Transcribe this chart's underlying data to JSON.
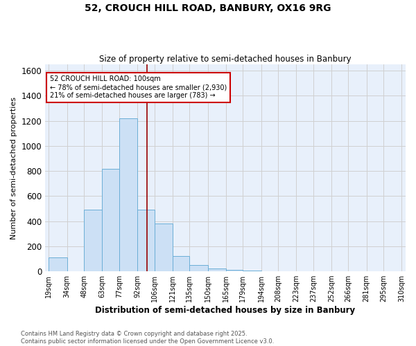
{
  "title_line1": "52, CROUCH HILL ROAD, BANBURY, OX16 9RG",
  "title_line2": "Size of property relative to semi-detached houses in Banbury",
  "xlabel": "Distribution of semi-detached houses by size in Banbury",
  "ylabel": "Number of semi-detached properties",
  "footnote": "Contains HM Land Registry data © Crown copyright and database right 2025.\nContains public sector information licensed under the Open Government Licence v3.0.",
  "bin_labels": [
    "19sqm",
    "34sqm",
    "48sqm",
    "63sqm",
    "77sqm",
    "92sqm",
    "106sqm",
    "121sqm",
    "135sqm",
    "150sqm",
    "165sqm",
    "179sqm",
    "194sqm",
    "208sqm",
    "223sqm",
    "237sqm",
    "252sqm",
    "266sqm",
    "281sqm",
    "295sqm",
    "310sqm"
  ],
  "bar_heights": [
    110,
    0,
    490,
    820,
    1220,
    490,
    380,
    120,
    50,
    20,
    10,
    5,
    0,
    0,
    0,
    0,
    0,
    0,
    0,
    0
  ],
  "bar_color": "#cce0f5",
  "bar_edgecolor": "#6baed6",
  "grid_color": "#d0d0d0",
  "background_color": "#e8f0fb",
  "ylim": [
    0,
    1650
  ],
  "property_label": "52 CROUCH HILL ROAD: 100sqm",
  "annotation_line1": "← 78% of semi-detached houses are smaller (2,930)",
  "annotation_line2": "21% of semi-detached houses are larger (783) →",
  "red_line_x": 100,
  "red_line_color": "#990000",
  "annotation_box_edgecolor": "#cc0000",
  "tick_fontsize": 7,
  "bin_edges": [
    19,
    34,
    48,
    63,
    77,
    92,
    106,
    121,
    135,
    150,
    165,
    179,
    194,
    208,
    223,
    237,
    252,
    266,
    281,
    295,
    310
  ]
}
